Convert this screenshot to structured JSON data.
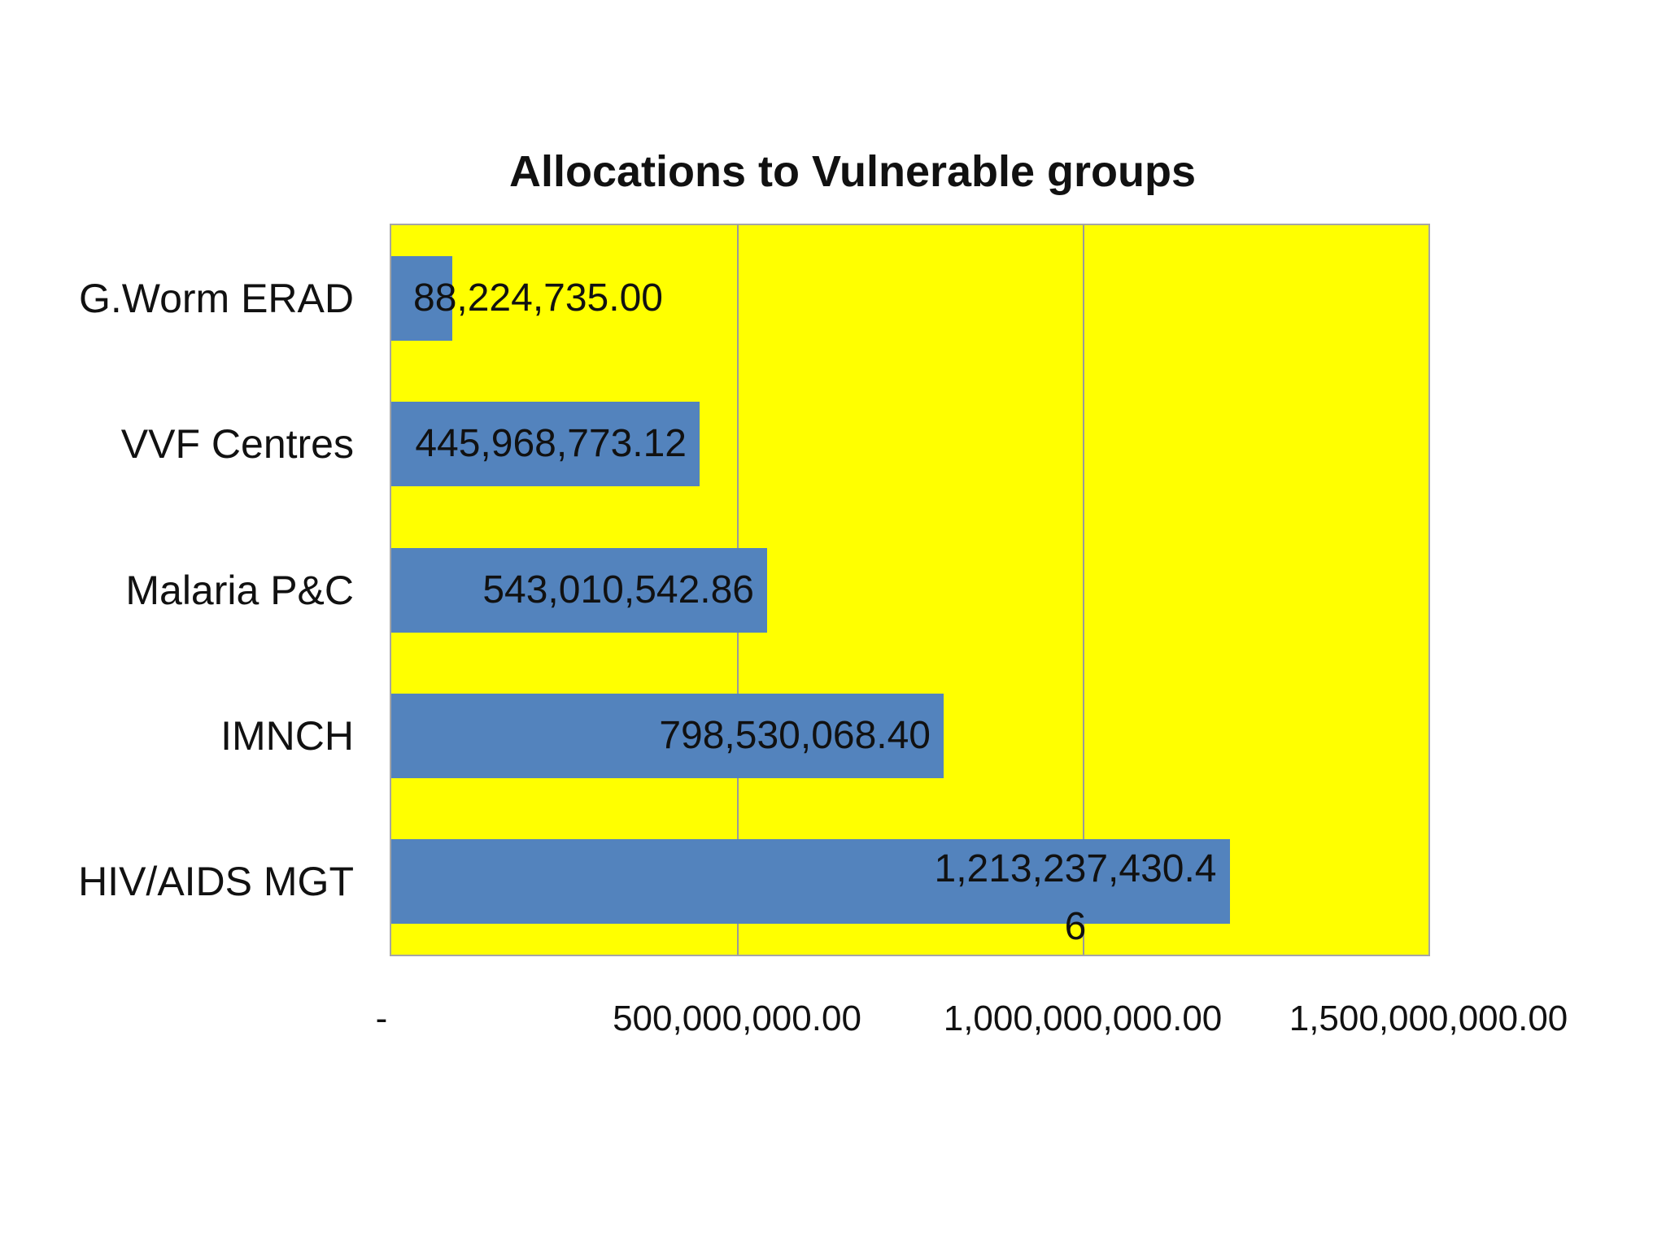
{
  "chart_data": {
    "type": "bar",
    "orientation": "horizontal",
    "title": "Allocations to Vulnerable groups",
    "categories": [
      "G.Worm ERAD",
      "VVF Centres",
      "Malaria P&C",
      "IMNCH",
      "HIV/AIDS MGT"
    ],
    "values": [
      88224735.0,
      445968773.12,
      543010542.86,
      798530068.4,
      1213237430.46
    ],
    "data_labels": [
      [
        "88,224,735.00"
      ],
      [
        "445,968,773.12"
      ],
      [
        "543,010,542.86"
      ],
      [
        "798,530,068.40"
      ],
      [
        "1,213,237,430.4",
        "6"
      ]
    ],
    "x_ticks": [
      {
        "value": 0,
        "label": "-"
      },
      {
        "value": 500000000,
        "label": "500,000,000.00"
      },
      {
        "value": 1000000000,
        "label": "1,000,000,000.00"
      },
      {
        "value": 1500000000,
        "label": "1,500,000,000.00"
      }
    ],
    "xlim": [
      0,
      1500000000
    ],
    "grid": true,
    "legend": false,
    "plot_bg_color": "#FFFF00",
    "bar_color": "#5383BD",
    "gridline_color": "#9a9a9a",
    "border_color": "#a5a5a5",
    "text_color": "#111111",
    "page_bg_color": "#FFFFFF"
  }
}
